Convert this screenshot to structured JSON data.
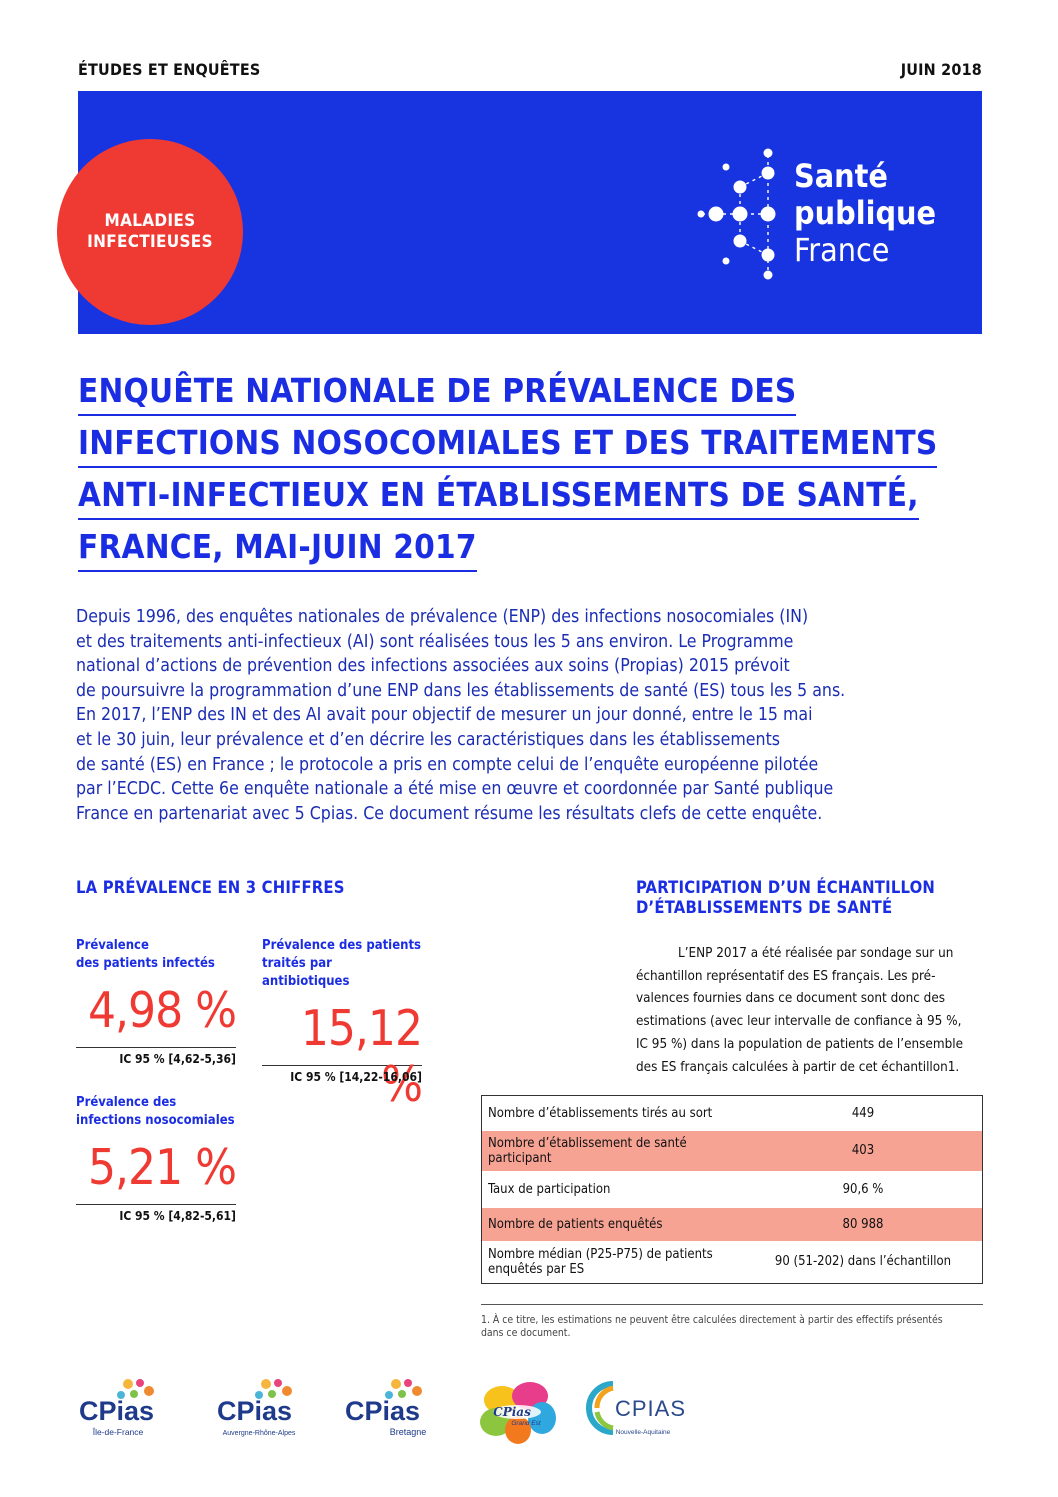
{
  "header": {
    "category": "ÉTUDES ET ENQUÊTES",
    "date": "JUIN 2018"
  },
  "banner": {
    "theme_line1": "MALADIES",
    "theme_line2": "INFECTIEUSES",
    "logo_line1": "Santé",
    "logo_line2": "publique",
    "logo_line3": "France"
  },
  "title_lines": [
    "ENQUÊTE NATIONALE DE PRÉVALENCE DES",
    "INFECTIONS NOSOCOMIALES ET DES TRAITEMENTS",
    "ANTI-INFECTIEUX EN ÉTABLISSEMENTS DE SANTÉ,",
    "FRANCE, MAI-JUIN 2017"
  ],
  "intro_lines": [
    "Depuis 1996, des enquêtes nationales de prévalence (ENP) des infections nosocomiales (IN)",
    "et des traitements anti-infectieux (AI) sont réalisées tous les 5 ans environ. Le Programme",
    "national d’actions de prévention des infections associées aux soins (Propias) 2015 prévoit",
    "de poursuivre la programmation d’une ENP dans les établissements de santé (ES) tous les 5 ans.",
    "En 2017, l’ENP des IN et des AI avait pour objectif de mesurer un jour donné, entre le 15 mai",
    "et le 30 juin, leur prévalence et d’en décrire les caractéristiques dans les établissements",
    "de santé (ES) en France ; le protocole a pris en compte celui de l’enquête européenne pilotée",
    "par l’ECDC. Cette 6e enquête nationale a été mise en œuvre et coordonnée par Santé publique",
    "France en partenariat avec 5 Cpias. Ce document résume les résultats clefs de cette enquête."
  ],
  "prevalence": {
    "heading": "LA PRÉVALENCE EN 3 CHIFFRES",
    "stats": [
      {
        "label_line1": "Prévalence",
        "label_line2": "des patients infectés",
        "value": "4,98 %",
        "ci": "IC 95 % [4,62-5,36]"
      },
      {
        "label_line1": "Prévalence des patients",
        "label_line2": "traités par antibiotiques",
        "value": "15,12 %",
        "ci": "IC 95 % [14,22-16,06]"
      },
      {
        "label_line1": "Prévalence des",
        "label_line2": "infections nosocomiales",
        "value": "5,21 %",
        "ci": "IC 95 % [4,82-5,61]"
      }
    ]
  },
  "participation": {
    "heading_line1": "PARTICIPATION D’UN ÉCHANTILLON",
    "heading_line2": "D’ÉTABLISSEMENTS DE SANTÉ",
    "body_lines": [
      "L’ENP 2017 a été réalisée par sondage sur un",
      "échantillon représentatif des ES français. Les pré-",
      "valences fournies dans ce document sont donc des",
      "estimations (avec leur intervalle de confiance à 95 %,",
      "IC 95 %) dans la population de patients de l’ensemble",
      "des ES français calculées à partir de cet échantillon1."
    ],
    "table": [
      {
        "label": "Nombre d’établissements tirés au sort",
        "value": "449"
      },
      {
        "label": "Nombre d’établissement de santé participant",
        "value": "403"
      },
      {
        "label": "Taux de participation",
        "value": "90,6 %"
      },
      {
        "label": "Nombre de patients enquêtés",
        "value": "80 988"
      },
      {
        "label": "Nombre médian (P25-P75) de patients enquêtés par ES",
        "value": "90 (51-202) dans l’échantillon"
      }
    ],
    "footnote": "1. À ce titre, les estimations ne peuvent être calculées directement à partir des effectifs présentés dans ce document."
  },
  "partner_logos": [
    {
      "name": "CPias",
      "region": "Île-de-France"
    },
    {
      "name": "CPias",
      "region": "Auvergne-Rhône-Alpes"
    },
    {
      "name": "CPias",
      "region": "Bretagne"
    },
    {
      "name": "CPias",
      "region": "Grand Est"
    },
    {
      "name": "CPIAS",
      "region": "Nouvelle-Aquitaine"
    }
  ],
  "colors": {
    "brand_blue": "#1834e0",
    "accent_red": "#ef3a33",
    "row_highlight": "#f6a394"
  }
}
